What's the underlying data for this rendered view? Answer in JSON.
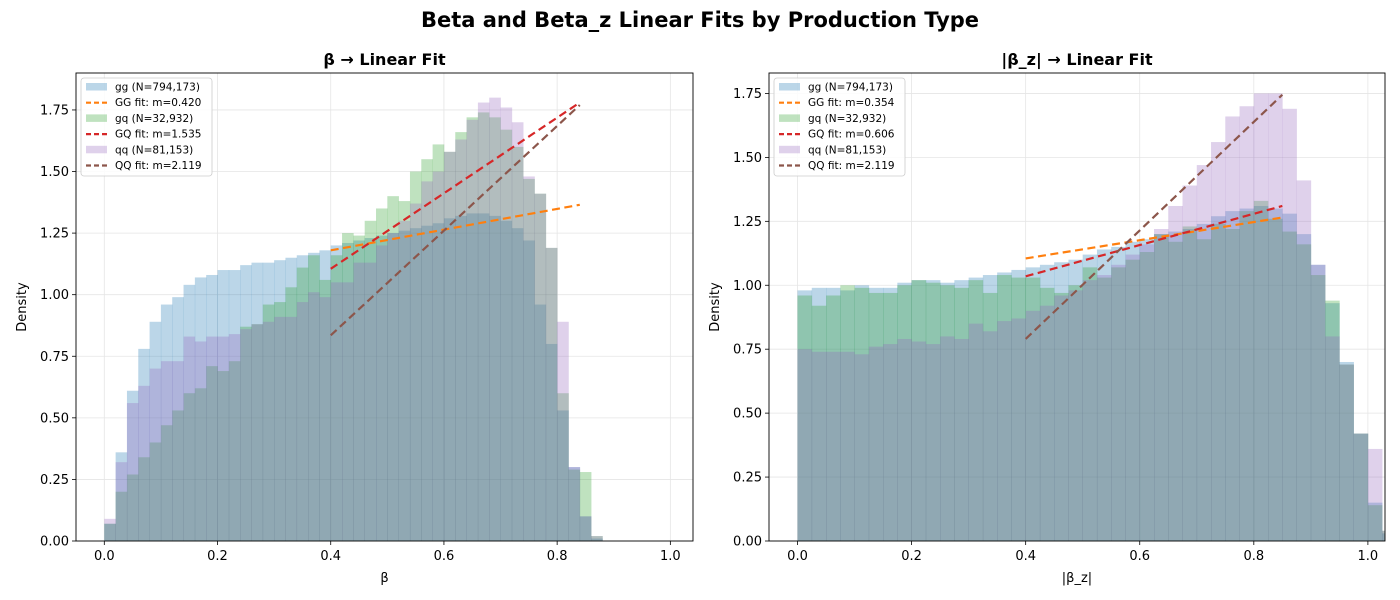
{
  "suptitle": "Beta and Beta_z Linear Fits by Production Type",
  "colors": {
    "gg": "#1f77b4",
    "gq": "#2ca02c",
    "qq": "#9467bd",
    "GG_fit": "#ff7f0e",
    "GQ_fit": "#d62728",
    "QQ_fit": "#8c564b"
  },
  "chart_data": [
    {
      "type": "histogram+line",
      "title": "β → Linear Fit",
      "xlabel": "β",
      "ylabel": "Density",
      "xlim": [
        -0.05,
        1.04
      ],
      "ylim": [
        0,
        1.9
      ],
      "xticks": [
        "0.0",
        "0.2",
        "0.4",
        "0.6",
        "0.8",
        "1.0"
      ],
      "yticks": [
        "0.00",
        "0.25",
        "0.50",
        "0.75",
        "1.00",
        "1.25",
        "1.50",
        "1.75"
      ],
      "grid": true,
      "legend_position": "upper-left",
      "bin_start": 0.0,
      "bin_width": 0.02,
      "histograms": [
        {
          "name": "gg (N=794,173)",
          "color_key": "gg",
          "values": [
            0.07,
            0.36,
            0.61,
            0.78,
            0.89,
            0.96,
            0.99,
            1.04,
            1.07,
            1.08,
            1.1,
            1.1,
            1.12,
            1.13,
            1.13,
            1.14,
            1.15,
            1.16,
            1.17,
            1.18,
            1.2,
            1.21,
            1.22,
            1.23,
            1.24,
            1.25,
            1.26,
            1.27,
            1.28,
            1.29,
            1.31,
            1.32,
            1.33,
            1.33,
            1.32,
            1.3,
            1.27,
            1.22,
            0.96,
            0.8,
            0.53,
            0.3,
            0.1,
            0.01
          ]
        },
        {
          "name": "gq (N=32,932)",
          "color_key": "gq",
          "values": [
            0.07,
            0.2,
            0.27,
            0.34,
            0.4,
            0.47,
            0.53,
            0.6,
            0.62,
            0.71,
            0.69,
            0.73,
            0.87,
            0.88,
            0.96,
            0.97,
            1.03,
            1.11,
            1.16,
            1.06,
            1.16,
            1.25,
            1.24,
            1.3,
            1.35,
            1.4,
            1.38,
            1.5,
            1.55,
            1.61,
            1.58,
            1.66,
            1.72,
            1.74,
            1.72,
            1.67,
            1.6,
            1.47,
            1.41,
            1.19,
            0.6,
            0.29,
            0.28,
            0.02
          ]
        },
        {
          "name": "qq (N=81,153)",
          "color_key": "qq",
          "values": [
            0.09,
            0.32,
            0.56,
            0.63,
            0.7,
            0.73,
            0.73,
            0.83,
            0.81,
            0.83,
            0.83,
            0.84,
            0.86,
            0.88,
            0.89,
            0.91,
            0.91,
            0.97,
            1.01,
            0.99,
            1.05,
            1.05,
            1.13,
            1.13,
            1.2,
            1.25,
            1.3,
            1.37,
            1.46,
            1.5,
            1.58,
            1.63,
            1.71,
            1.78,
            1.8,
            1.76,
            1.7,
            1.48,
            1.41,
            1.19,
            0.89,
            0.3,
            0.1,
            0.02
          ]
        }
      ],
      "fits": [
        {
          "name": "GG fit: m=0.420",
          "color_key": "GG_fit",
          "x": [
            0.4,
            0.84
          ],
          "y": [
            1.18,
            1.365
          ]
        },
        {
          "name": "GQ fit: m=1.535",
          "color_key": "GQ_fit",
          "x": [
            0.4,
            0.84
          ],
          "y": [
            1.105,
            1.78
          ]
        },
        {
          "name": "QQ fit: m=2.119",
          "color_key": "QQ_fit",
          "x": [
            0.4,
            0.84
          ],
          "y": [
            0.835,
            1.77
          ]
        }
      ],
      "legend_order": [
        "gg (N=794,173)",
        "GG fit: m=0.420",
        "gq (N=32,932)",
        "GQ fit: m=1.535",
        "qq (N=81,153)",
        "QQ fit: m=2.119"
      ]
    },
    {
      "type": "histogram+line",
      "title": "|β_z| → Linear Fit",
      "xlabel": "|β_z|",
      "ylabel": "Density",
      "xlim": [
        -0.05,
        1.03
      ],
      "ylim": [
        0,
        1.83
      ],
      "xticks": [
        "0.0",
        "0.2",
        "0.4",
        "0.6",
        "0.8",
        "1.0"
      ],
      "yticks": [
        "0.00",
        "0.25",
        "0.50",
        "0.75",
        "1.00",
        "1.25",
        "1.50",
        "1.75"
      ],
      "grid": true,
      "legend_position": "upper-left",
      "bin_start": 0.0,
      "bin_width": 0.025,
      "histograms": [
        {
          "name": "gg (N=794,173)",
          "color_key": "gg",
          "values": [
            0.98,
            0.99,
            0.99,
            0.98,
            1.0,
            0.99,
            0.99,
            1.01,
            1.02,
            1.02,
            1.01,
            1.02,
            1.03,
            1.04,
            1.05,
            1.06,
            1.07,
            1.08,
            1.09,
            1.1,
            1.12,
            1.14,
            1.15,
            1.17,
            1.18,
            1.2,
            1.21,
            1.22,
            1.24,
            1.27,
            1.29,
            1.3,
            1.31,
            1.3,
            1.28,
            1.2,
            1.08,
            0.93,
            0.7,
            0.42,
            0.15,
            0.03
          ]
        },
        {
          "name": "gq (N=32,932)",
          "color_key": "gq",
          "values": [
            0.96,
            0.92,
            0.96,
            1.0,
            0.99,
            0.97,
            0.97,
            1.0,
            1.02,
            1.01,
            1.0,
            0.99,
            1.02,
            0.97,
            1.04,
            1.03,
            1.03,
            0.99,
            0.97,
            1.0,
            1.07,
            1.03,
            1.07,
            1.1,
            1.13,
            1.2,
            1.17,
            1.23,
            1.18,
            1.24,
            1.22,
            1.29,
            1.33,
            1.26,
            1.21,
            1.16,
            1.04,
            0.94,
            0.69,
            0.42,
            0.14,
            0.04
          ]
        },
        {
          "name": "qq (N=81,153)",
          "color_key": "qq",
          "values": [
            0.75,
            0.74,
            0.74,
            0.74,
            0.73,
            0.76,
            0.77,
            0.79,
            0.78,
            0.77,
            0.8,
            0.79,
            0.85,
            0.82,
            0.86,
            0.87,
            0.9,
            0.92,
            0.96,
            0.98,
            1.02,
            1.04,
            1.08,
            1.12,
            1.16,
            1.22,
            1.31,
            1.39,
            1.47,
            1.56,
            1.66,
            1.7,
            1.75,
            1.75,
            1.69,
            1.41,
            1.08,
            0.8,
            0.69,
            0.42,
            0.36,
            0.04
          ]
        }
      ],
      "fits": [
        {
          "name": "GG fit: m=0.354",
          "color_key": "GG_fit",
          "x": [
            0.4,
            0.85
          ],
          "y": [
            1.105,
            1.265
          ]
        },
        {
          "name": "GQ fit: m=0.606",
          "color_key": "GQ_fit",
          "x": [
            0.4,
            0.85
          ],
          "y": [
            1.035,
            1.31
          ]
        },
        {
          "name": "QQ fit: m=2.119",
          "color_key": "QQ_fit",
          "x": [
            0.4,
            0.85
          ],
          "y": [
            0.79,
            1.745
          ]
        }
      ],
      "legend_order": [
        "gg (N=794,173)",
        "GG fit: m=0.354",
        "gq (N=32,932)",
        "GQ fit: m=0.606",
        "qq (N=81,153)",
        "QQ fit: m=2.119"
      ]
    }
  ]
}
